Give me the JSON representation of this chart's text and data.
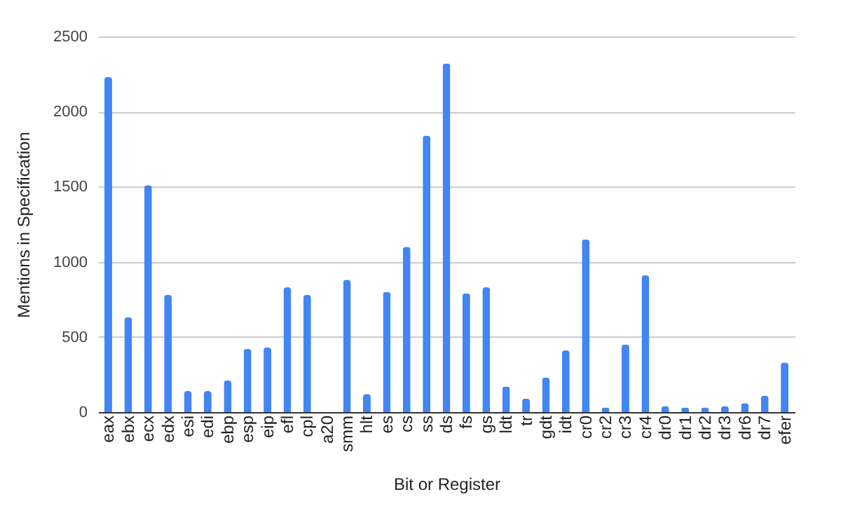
{
  "chart_data": {
    "type": "bar",
    "xlabel": "Bit or Register",
    "ylabel": "Mentions in Specification",
    "categories": [
      "eax",
      "ebx",
      "ecx",
      "edx",
      "esi",
      "edi",
      "ebp",
      "esp",
      "eip",
      "efl",
      "cpl",
      "a20",
      "smm",
      "hlt",
      "es",
      "cs",
      "ss",
      "ds",
      "fs",
      "gs",
      "ldt",
      "tr",
      "gdt",
      "idt",
      "cr0",
      "cr2",
      "cr3",
      "cr4",
      "dr0",
      "dr1",
      "dr2",
      "dr3",
      "dr6",
      "dr7",
      "efer"
    ],
    "values": [
      2230,
      630,
      1510,
      780,
      140,
      140,
      210,
      420,
      430,
      830,
      780,
      0,
      880,
      120,
      800,
      1100,
      1840,
      2320,
      790,
      830,
      170,
      90,
      230,
      410,
      1150,
      30,
      450,
      910,
      40,
      30,
      30,
      40,
      60,
      110,
      330
    ],
    "color": "#4285f4",
    "ylim": [
      0,
      2500
    ],
    "yticks": [
      0,
      500,
      1000,
      1500,
      2000,
      2500
    ],
    "grid": "y"
  }
}
